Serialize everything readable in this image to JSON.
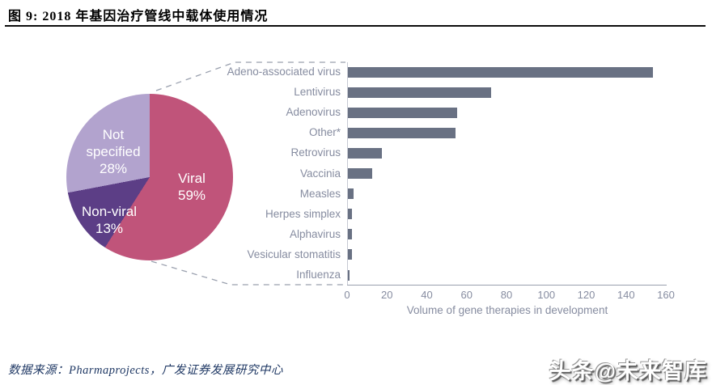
{
  "header": {
    "title": "图 9:  2018 年基因治疗管线中载体使用情况"
  },
  "chart_data": [
    {
      "type": "pie",
      "labels": [
        "Viral",
        "Non-viral",
        "Not specified"
      ],
      "values": [
        59,
        13,
        28
      ],
      "unit": "%",
      "colors": [
        "#c0547a",
        "#5c3e86",
        "#b2a3ce"
      ],
      "label_color": "#ffffff",
      "start_angle": "top",
      "direction": "clockwise"
    },
    {
      "type": "bar",
      "orientation": "horizontal",
      "categories": [
        "Adeno-associated virus",
        "Lentivirus",
        "Adenovirus",
        "Other*",
        "Retrovirus",
        "Vaccinia",
        "Measles",
        "Herpes simplex",
        "Alphavirus",
        "Vesicular stomatitis",
        "Influenza"
      ],
      "values": [
        153,
        72,
        55,
        54,
        17,
        12,
        3,
        2,
        2,
        2,
        1
      ],
      "xlabel": "Volume of gene therapies in development",
      "xlim": [
        0,
        160
      ],
      "xticks": [
        0,
        20,
        40,
        60,
        80,
        100,
        120,
        140,
        160
      ],
      "bar_color": "#697183",
      "label_color": "#868ca0",
      "grid": false,
      "legend": "none"
    }
  ],
  "footer": {
    "source": "数据来源：Pharmaprojects，广发证券发展研究中心",
    "watermark": "头条@未来智库"
  }
}
